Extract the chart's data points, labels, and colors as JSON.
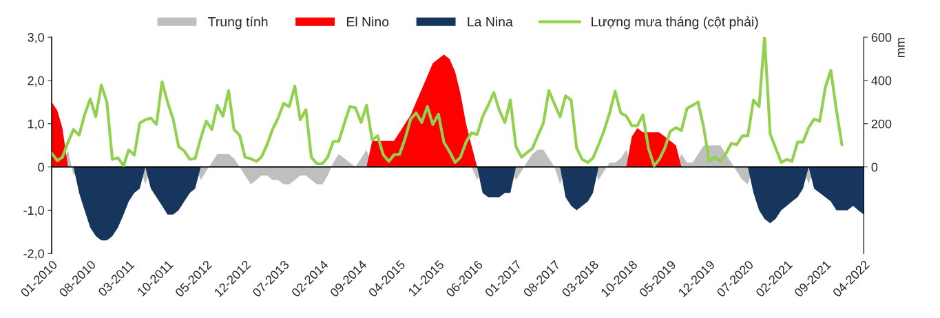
{
  "chart_data": {
    "type": "area",
    "x": [
      "2010-01",
      "2010-02",
      "2010-03",
      "2010-04",
      "2010-05",
      "2010-06",
      "2010-07",
      "2010-08",
      "2010-09",
      "2010-10",
      "2010-11",
      "2010-12",
      "2011-01",
      "2011-02",
      "2011-03",
      "2011-04",
      "2011-05",
      "2011-06",
      "2011-07",
      "2011-08",
      "2011-09",
      "2011-10",
      "2011-11",
      "2011-12",
      "2012-01",
      "2012-02",
      "2012-03",
      "2012-04",
      "2012-05",
      "2012-06",
      "2012-07",
      "2012-08",
      "2012-09",
      "2012-10",
      "2012-11",
      "2012-12",
      "2013-01",
      "2013-02",
      "2013-03",
      "2013-04",
      "2013-05",
      "2013-06",
      "2013-07",
      "2013-08",
      "2013-09",
      "2013-10",
      "2013-11",
      "2013-12",
      "2014-01",
      "2014-02",
      "2014-03",
      "2014-04",
      "2014-05",
      "2014-06",
      "2014-07",
      "2014-08",
      "2014-09",
      "2014-10",
      "2014-11",
      "2014-12",
      "2015-01",
      "2015-02",
      "2015-03",
      "2015-04",
      "2015-05",
      "2015-06",
      "2015-07",
      "2015-08",
      "2015-09",
      "2015-10",
      "2015-11",
      "2015-12",
      "2016-01",
      "2016-02",
      "2016-03",
      "2016-04",
      "2016-05",
      "2016-06",
      "2016-07",
      "2016-08",
      "2016-09",
      "2016-10",
      "2016-11",
      "2016-12",
      "2017-01",
      "2017-02",
      "2017-03",
      "2017-04",
      "2017-05",
      "2017-06",
      "2017-07",
      "2017-08",
      "2017-09",
      "2017-10",
      "2017-11",
      "2017-12",
      "2018-01",
      "2018-02",
      "2018-03",
      "2018-04",
      "2018-05",
      "2018-06",
      "2018-07",
      "2018-08",
      "2018-09",
      "2018-10",
      "2018-11",
      "2018-12",
      "2019-01",
      "2019-02",
      "2019-03",
      "2019-04",
      "2019-05",
      "2019-06",
      "2019-07",
      "2019-08",
      "2019-09",
      "2019-10",
      "2019-11",
      "2019-12",
      "2020-01",
      "2020-02",
      "2020-03",
      "2020-04",
      "2020-05",
      "2020-06",
      "2020-07",
      "2020-08",
      "2020-09",
      "2020-10",
      "2020-11",
      "2020-12",
      "2021-01",
      "2021-02",
      "2021-03",
      "2021-04",
      "2021-05",
      "2021-06",
      "2021-07",
      "2021-08",
      "2021-09",
      "2021-10",
      "2021-11",
      "2021-12",
      "2022-01",
      "2022-02",
      "2022-03",
      "2022-04"
    ],
    "series": [
      {
        "name": "Trung tính",
        "color": "#bfbfbf",
        "values": [
          0,
          0,
          0,
          0.4,
          -0.2,
          0,
          0,
          0,
          0,
          0,
          0,
          0,
          0,
          0,
          0,
          0,
          0,
          -0.4,
          0,
          0,
          0,
          0,
          0,
          0,
          0,
          0,
          0,
          -0.3,
          -0.1,
          0.1,
          0.3,
          0.3,
          0.3,
          0.2,
          0,
          -0.2,
          -0.4,
          -0.3,
          -0.2,
          -0.2,
          -0.3,
          -0.3,
          -0.4,
          -0.4,
          -0.3,
          -0.2,
          -0.2,
          -0.3,
          -0.4,
          -0.4,
          -0.2,
          0.1,
          0.3,
          0.2,
          0.1,
          0,
          0.2,
          0.4,
          0,
          0,
          0,
          0,
          0,
          0,
          0,
          0,
          0,
          0,
          0,
          0,
          0,
          0,
          0,
          0,
          0,
          0,
          0,
          -0.3,
          0,
          0,
          0,
          0,
          0,
          0,
          -0.3,
          -0.1,
          0.1,
          0.3,
          0.4,
          0.4,
          0.2,
          0,
          -0.4,
          0,
          0,
          0,
          0,
          0,
          0,
          -0.3,
          -0.1,
          0.1,
          0.1,
          0.2,
          0.4,
          0,
          0,
          0,
          0,
          0,
          0,
          0,
          0,
          0,
          0.3,
          0.1,
          0.1,
          0.3,
          0.5,
          0.5,
          0.5,
          0.5,
          0.3,
          0.1,
          -0.1,
          -0.3,
          -0.4,
          0,
          0,
          0,
          0,
          0,
          0,
          0,
          0,
          0,
          0,
          -0.4,
          0,
          0,
          0,
          0,
          0,
          0,
          0,
          0,
          0,
          0
        ]
      },
      {
        "name": "El Nino",
        "color": "#ff0000",
        "values": [
          1.5,
          1.3,
          0.9,
          0,
          0,
          0,
          0,
          0,
          0,
          0,
          0,
          0,
          0,
          0,
          0,
          0,
          0,
          0,
          0,
          0,
          0,
          0,
          0,
          0,
          0,
          0,
          0,
          0,
          0,
          0,
          0,
          0,
          0,
          0,
          0,
          0,
          0,
          0,
          0,
          0,
          0,
          0,
          0,
          0,
          0,
          0,
          0,
          0,
          0,
          0,
          0,
          0,
          0,
          0,
          0,
          0,
          0,
          0,
          0.6,
          0.6,
          0.6,
          0.6,
          0.6,
          0.8,
          1.0,
          1.2,
          1.5,
          1.8,
          2.1,
          2.4,
          2.5,
          2.6,
          2.5,
          2.2,
          1.7,
          1.0,
          0.5,
          0,
          0,
          0,
          0,
          0,
          0,
          0,
          0,
          0,
          0,
          0,
          0,
          0,
          0,
          0,
          0,
          0,
          0,
          0,
          0,
          0,
          0,
          0,
          0,
          0,
          0,
          0,
          0,
          0.7,
          0.9,
          0.8,
          0.8,
          0.8,
          0.8,
          0.7,
          0.6,
          0.5,
          0,
          0,
          0,
          0,
          0,
          0,
          0,
          0,
          0,
          0,
          0,
          0,
          0,
          0,
          0,
          0,
          0,
          0,
          0,
          0,
          0,
          0,
          0,
          0,
          0,
          0,
          0,
          0,
          0,
          0,
          0,
          0,
          0,
          0
        ]
      },
      {
        "name": "La Nina",
        "color": "#17365d",
        "values": [
          0,
          0,
          0,
          0,
          0,
          -0.6,
          -1.0,
          -1.4,
          -1.6,
          -1.7,
          -1.7,
          -1.6,
          -1.4,
          -1.1,
          -0.8,
          -0.6,
          -0.5,
          0,
          -0.5,
          -0.7,
          -0.9,
          -1.1,
          -1.1,
          -1.0,
          -0.8,
          -0.6,
          -0.5,
          0,
          0,
          0,
          0,
          0,
          0,
          0,
          0,
          0,
          0,
          0,
          0,
          0,
          0,
          0,
          0,
          0,
          0,
          0,
          0,
          0,
          0,
          0,
          0,
          0,
          0,
          0,
          0,
          0,
          0,
          0,
          0,
          0,
          0,
          0,
          0,
          0,
          0,
          0,
          0,
          0,
          0,
          0,
          0,
          0,
          0,
          0,
          0,
          0,
          0,
          0,
          -0.6,
          -0.7,
          -0.7,
          -0.7,
          -0.6,
          -0.6,
          0,
          0,
          0,
          0,
          0,
          0,
          0,
          0,
          0,
          -0.7,
          -0.9,
          -1.0,
          -0.9,
          -0.8,
          -0.6,
          0,
          0,
          0,
          0,
          0,
          0,
          0,
          0,
          0,
          0,
          0,
          0,
          0,
          0,
          0,
          0,
          0,
          0,
          0,
          0,
          0,
          0,
          0,
          0,
          0,
          0,
          0,
          0,
          -0.6,
          -1.0,
          -1.2,
          -1.3,
          -1.2,
          -1.0,
          -0.9,
          -0.8,
          -0.7,
          -0.5,
          0,
          -0.5,
          -0.6,
          -0.7,
          -0.8,
          -1.0,
          -1.0,
          -1.0,
          -0.9,
          -1.0,
          -1.1
        ]
      },
      {
        "name": "Lượng mưa tháng (cột phải)",
        "type": "line",
        "axis": "y2",
        "color": "#92d050",
        "values": [
          63,
          30,
          45,
          115,
          173,
          147,
          241,
          315,
          232,
          379,
          300,
          35,
          42,
          6,
          79,
          55,
          203,
          218,
          226,
          197,
          394,
          300,
          221,
          94,
          74,
          35,
          39,
          133,
          212,
          173,
          285,
          235,
          353,
          173,
          147,
          45,
          38,
          26,
          45,
          103,
          173,
          226,
          294,
          279,
          373,
          218,
          265,
          45,
          15,
          15,
          45,
          118,
          118,
          203,
          279,
          274,
          206,
          285,
          124,
          144,
          56,
          26,
          56,
          59,
          130,
          221,
          250,
          206,
          279,
          197,
          244,
          114,
          71,
          21,
          45,
          115,
          158,
          150,
          232,
          285,
          344,
          262,
          206,
          309,
          94,
          45,
          65,
          85,
          144,
          203,
          353,
          291,
          232,
          329,
          309,
          88,
          35,
          21,
          41,
          103,
          168,
          250,
          350,
          250,
          235,
          191,
          191,
          241,
          85,
          6,
          35,
          88,
          165,
          182,
          168,
          271,
          285,
          300,
          182,
          26,
          45,
          26,
          59,
          109,
          103,
          144,
          144,
          309,
          279,
          600,
          153,
          88,
          21,
          35,
          26,
          115,
          115,
          182,
          221,
          212,
          368,
          447,
          262,
          103,
          null,
          null,
          null,
          null
        ]
      }
    ],
    "y2label": "mm",
    "xlim": [
      "2010-01",
      "2022-04"
    ],
    "xticks": [
      {
        "value": "2010-01",
        "label": "01-2010"
      },
      {
        "value": "2010-08",
        "label": "08-2010"
      },
      {
        "value": "2011-03",
        "label": "03-2011"
      },
      {
        "value": "2011-10",
        "label": "10-2011"
      },
      {
        "value": "2012-05",
        "label": "05-2012"
      },
      {
        "value": "2012-12",
        "label": "12-2012"
      },
      {
        "value": "2013-07",
        "label": "07-2013"
      },
      {
        "value": "2014-02",
        "label": "02-2014"
      },
      {
        "value": "2014-09",
        "label": "09-2014"
      },
      {
        "value": "2015-04",
        "label": "04-2015"
      },
      {
        "value": "2015-11",
        "label": "11-2015"
      },
      {
        "value": "2016-06",
        "label": "06-2016"
      },
      {
        "value": "2017-01",
        "label": "01-2017"
      },
      {
        "value": "2017-08",
        "label": "08-2017"
      },
      {
        "value": "2018-03",
        "label": "03-2018"
      },
      {
        "value": "2018-10",
        "label": "10-2018"
      },
      {
        "value": "2019-05",
        "label": "05-2019"
      },
      {
        "value": "2019-12",
        "label": "12-2019"
      },
      {
        "value": "2020-07",
        "label": "07-2020"
      },
      {
        "value": "2021-02",
        "label": "02-2021"
      },
      {
        "value": "2021-09",
        "label": "09-2021"
      },
      {
        "value": "2022-04",
        "label": "04-2022"
      }
    ],
    "ylim": [
      -2,
      3
    ],
    "yticks": [
      {
        "value": -2,
        "label": "-2,0"
      },
      {
        "value": -1,
        "label": "-1,0"
      },
      0,
      {
        "value": 1,
        "label": "1,0"
      },
      {
        "value": 2,
        "label": "2,0"
      },
      {
        "value": 3,
        "label": "3,0"
      }
    ],
    "y2lim": [
      -400,
      600
    ],
    "y2ticks": [
      0,
      200,
      400,
      600
    ],
    "ref_lines": [
      {
        "axis": "y",
        "value": 0,
        "color": "#000000"
      }
    ],
    "legend": "top",
    "grid": false
  }
}
